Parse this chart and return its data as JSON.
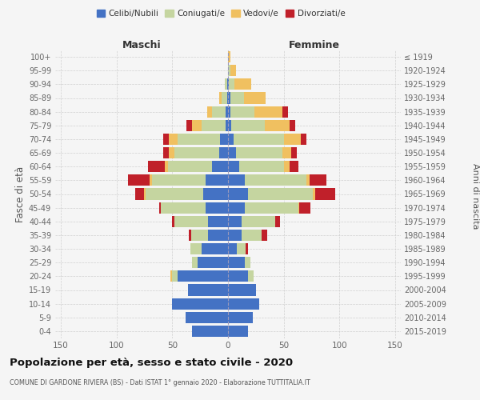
{
  "age_groups": [
    "0-4",
    "5-9",
    "10-14",
    "15-19",
    "20-24",
    "25-29",
    "30-34",
    "35-39",
    "40-44",
    "45-49",
    "50-54",
    "55-59",
    "60-64",
    "65-69",
    "70-74",
    "75-79",
    "80-84",
    "85-89",
    "90-94",
    "95-99",
    "100+"
  ],
  "birth_years": [
    "2015-2019",
    "2010-2014",
    "2005-2009",
    "2000-2004",
    "1995-1999",
    "1990-1994",
    "1985-1989",
    "1980-1984",
    "1975-1979",
    "1970-1974",
    "1965-1969",
    "1960-1964",
    "1955-1959",
    "1950-1954",
    "1945-1949",
    "1940-1944",
    "1935-1939",
    "1930-1934",
    "1925-1929",
    "1920-1924",
    "≤ 1919"
  ],
  "colors": {
    "celibi": "#4472c4",
    "coniugati": "#c5d5a0",
    "vedovi": "#f0c060",
    "divorziati": "#c0202a"
  },
  "maschi": {
    "celibi": [
      32,
      38,
      50,
      36,
      45,
      27,
      24,
      18,
      18,
      20,
      22,
      20,
      14,
      8,
      7,
      2,
      2,
      1,
      1,
      0,
      0
    ],
    "coniugati": [
      0,
      0,
      0,
      0,
      5,
      5,
      10,
      15,
      30,
      40,
      52,
      48,
      40,
      40,
      38,
      22,
      12,
      5,
      2,
      0,
      0
    ],
    "vedovi": [
      0,
      0,
      0,
      0,
      2,
      0,
      0,
      0,
      0,
      0,
      1,
      2,
      3,
      5,
      8,
      8,
      5,
      2,
      0,
      0,
      0
    ],
    "divorziati": [
      0,
      0,
      0,
      0,
      0,
      0,
      0,
      2,
      2,
      2,
      8,
      20,
      15,
      5,
      5,
      5,
      0,
      0,
      0,
      0,
      0
    ]
  },
  "femmine": {
    "celibi": [
      18,
      22,
      28,
      25,
      18,
      15,
      8,
      12,
      12,
      15,
      18,
      15,
      10,
      7,
      5,
      3,
      2,
      2,
      1,
      0,
      0
    ],
    "coniugati": [
      0,
      0,
      0,
      0,
      5,
      5,
      8,
      18,
      30,
      48,
      58,
      55,
      40,
      42,
      45,
      30,
      22,
      12,
      5,
      2,
      0
    ],
    "vedovi": [
      0,
      0,
      0,
      0,
      0,
      0,
      0,
      0,
      0,
      1,
      2,
      3,
      5,
      8,
      15,
      22,
      25,
      20,
      15,
      5,
      2
    ],
    "divorziati": [
      0,
      0,
      0,
      0,
      0,
      0,
      2,
      5,
      5,
      10,
      18,
      15,
      8,
      5,
      5,
      5,
      5,
      0,
      0,
      0,
      0
    ]
  },
  "xlim": 155,
  "title": "Popolazione per età, sesso e stato civile - 2020",
  "subtitle": "COMUNE DI GARDONE RIVIERA (BS) - Dati ISTAT 1° gennaio 2020 - Elaborazione TUTTITALIA.IT",
  "ylabel": "Fasce di età",
  "ylabel_right": "Anni di nascita",
  "xlabel_maschi": "Maschi",
  "xlabel_femmine": "Femmine",
  "legend_labels": [
    "Celibi/Nubili",
    "Coniugati/e",
    "Vedovi/e",
    "Divorziati/e"
  ],
  "background_color": "#f5f5f5"
}
